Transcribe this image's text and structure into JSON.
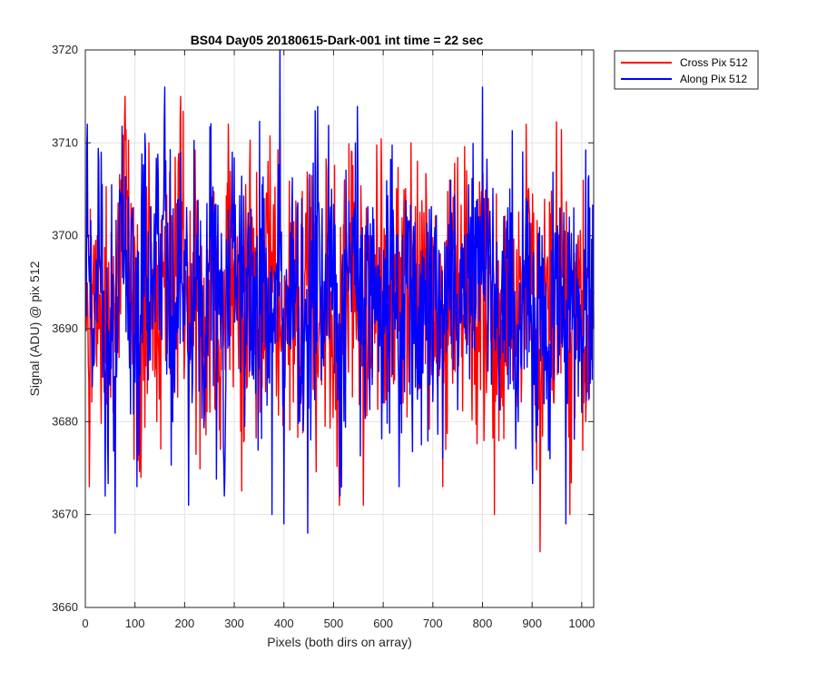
{
  "chart_data": {
    "type": "line",
    "title": "BS04 Day05 20180615-Dark-001 int time = 22 sec",
    "xlabel": "Pixels (both dirs on array)",
    "ylabel": "Signal (ADU) @ pix 512",
    "xlim": [
      0,
      1024
    ],
    "ylim": [
      3660,
      3720
    ],
    "xticks": [
      0,
      100,
      200,
      300,
      400,
      500,
      600,
      700,
      800,
      900,
      1000
    ],
    "yticks": [
      3660,
      3670,
      3680,
      3690,
      3700,
      3710,
      3720
    ],
    "grid": true,
    "legend_position": "outside-top-right",
    "series": [
      {
        "name": "Cross Pix 512",
        "color": "#ff0000",
        "mean": 3694,
        "x_range": [
          1,
          1024
        ],
        "samples": [
          [
            0,
            3684
          ],
          [
            8,
            3673
          ],
          [
            24,
            3700
          ],
          [
            40,
            3690
          ],
          [
            56,
            3681
          ],
          [
            72,
            3706
          ],
          [
            80,
            3715
          ],
          [
            96,
            3693
          ],
          [
            112,
            3674
          ],
          [
            128,
            3710
          ],
          [
            144,
            3680
          ],
          [
            160,
            3701
          ],
          [
            176,
            3682
          ],
          [
            192,
            3715
          ],
          [
            208,
            3676
          ],
          [
            224,
            3695
          ],
          [
            240,
            3684
          ],
          [
            256,
            3700
          ],
          [
            272,
            3677
          ],
          [
            288,
            3712
          ],
          [
            304,
            3692
          ],
          [
            320,
            3678
          ],
          [
            336,
            3702
          ],
          [
            352,
            3681
          ],
          [
            368,
            3708
          ],
          [
            384,
            3690
          ],
          [
            400,
            3675
          ],
          [
            416,
            3699
          ],
          [
            432,
            3684
          ],
          [
            448,
            3706
          ],
          [
            464,
            3681
          ],
          [
            480,
            3692
          ],
          [
            496,
            3687
          ],
          [
            512,
            3671
          ],
          [
            528,
            3693
          ],
          [
            544,
            3701
          ],
          [
            560,
            3671
          ],
          [
            576,
            3688
          ],
          [
            592,
            3697
          ],
          [
            608,
            3687
          ],
          [
            624,
            3698
          ],
          [
            640,
            3682
          ],
          [
            656,
            3710
          ],
          [
            672,
            3684
          ],
          [
            688,
            3700
          ],
          [
            704,
            3687
          ],
          [
            720,
            3673
          ],
          [
            736,
            3700
          ],
          [
            752,
            3686
          ],
          [
            768,
            3707
          ],
          [
            784,
            3684
          ],
          [
            800,
            3705
          ],
          [
            816,
            3695
          ],
          [
            824,
            3670
          ],
          [
            840,
            3689
          ],
          [
            856,
            3700
          ],
          [
            872,
            3684
          ],
          [
            888,
            3712
          ],
          [
            904,
            3692
          ],
          [
            916,
            3666
          ],
          [
            928,
            3694
          ],
          [
            944,
            3682
          ],
          [
            960,
            3703
          ],
          [
            976,
            3670
          ],
          [
            992,
            3699
          ],
          [
            1008,
            3680
          ],
          [
            1024,
            3694
          ]
        ]
      },
      {
        "name": "Along Pix 512",
        "color": "#0000ff",
        "mean": 3694,
        "x_range": [
          1,
          1024
        ],
        "samples": [
          [
            0,
            3668
          ],
          [
            4,
            3712
          ],
          [
            16,
            3690
          ],
          [
            32,
            3709
          ],
          [
            40,
            3672
          ],
          [
            60,
            3668
          ],
          [
            72,
            3703
          ],
          [
            88,
            3690
          ],
          [
            104,
            3673
          ],
          [
            120,
            3711
          ],
          [
            136,
            3690
          ],
          [
            160,
            3716
          ],
          [
            176,
            3680
          ],
          [
            192,
            3709
          ],
          [
            208,
            3671
          ],
          [
            224,
            3698
          ],
          [
            240,
            3681
          ],
          [
            256,
            3702
          ],
          [
            280,
            3672
          ],
          [
            296,
            3709
          ],
          [
            320,
            3694
          ],
          [
            336,
            3685
          ],
          [
            360,
            3704
          ],
          [
            376,
            3670
          ],
          [
            392,
            3720
          ],
          [
            400,
            3669
          ],
          [
            416,
            3703
          ],
          [
            432,
            3680
          ],
          [
            448,
            3668
          ],
          [
            464,
            3707
          ],
          [
            480,
            3686
          ],
          [
            496,
            3705
          ],
          [
            512,
            3679
          ],
          [
            528,
            3696
          ],
          [
            544,
            3710
          ],
          [
            560,
            3686
          ],
          [
            576,
            3700
          ],
          [
            600,
            3682
          ],
          [
            616,
            3708
          ],
          [
            632,
            3673
          ],
          [
            648,
            3702
          ],
          [
            672,
            3684
          ],
          [
            696,
            3700
          ],
          [
            720,
            3676
          ],
          [
            736,
            3706
          ],
          [
            752,
            3687
          ],
          [
            776,
            3702
          ],
          [
            800,
            3716
          ],
          [
            824,
            3689
          ],
          [
            848,
            3698
          ],
          [
            872,
            3680
          ],
          [
            888,
            3704
          ],
          [
            904,
            3684
          ],
          [
            920,
            3700
          ],
          [
            936,
            3676
          ],
          [
            952,
            3700
          ],
          [
            968,
            3669
          ],
          [
            984,
            3703
          ],
          [
            1000,
            3681
          ],
          [
            1016,
            3703
          ],
          [
            1024,
            3690
          ]
        ]
      }
    ]
  }
}
